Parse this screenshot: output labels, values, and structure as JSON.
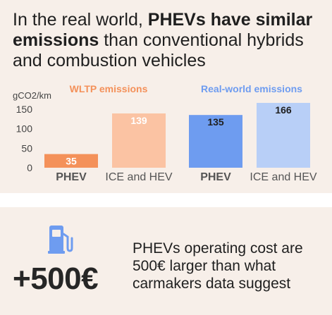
{
  "headline": {
    "part1": "In the real world, ",
    "bold": "PHEVs have similar emissions",
    "part2": " than conventional hybrids and combustion vehicles"
  },
  "chart_data": {
    "type": "bar",
    "ylabel": "gCO2/km",
    "ylim": [
      0,
      166
    ],
    "yticks": [
      0,
      50,
      100,
      150
    ],
    "grid": false,
    "panels": [
      {
        "title": "WLTP emissions",
        "color": "#f4915a",
        "categories": [
          "PHEV",
          "ICE and HEV"
        ],
        "values": [
          35,
          139
        ],
        "bar_colors": [
          "#f4915a",
          "#fbc3a3"
        ]
      },
      {
        "title": "Real-world emissions",
        "color": "#6e9cf0",
        "categories": [
          "PHEV",
          "ICE and HEV"
        ],
        "values": [
          135,
          166
        ],
        "bar_colors": [
          "#6e9cf0",
          "#b8cff7"
        ]
      }
    ]
  },
  "cost": {
    "value": "+500€",
    "note": "PHEVs operating cost are 500€ larger than what carmakers data suggest",
    "icon": "fuel-pump-icon",
    "icon_color": "#6e9cf0"
  }
}
